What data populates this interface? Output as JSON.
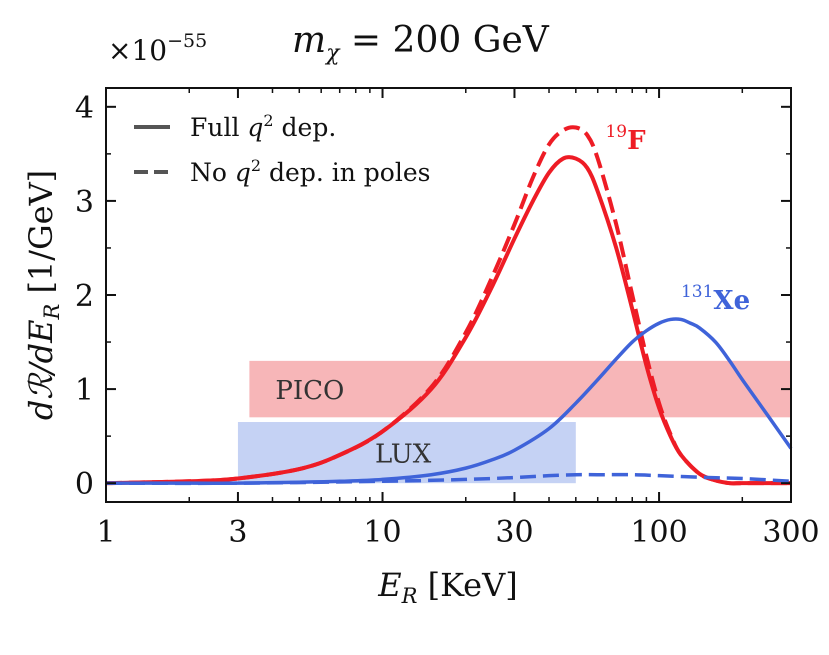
{
  "chart_data": {
    "type": "line",
    "title": "m_χ = 200 GeV",
    "xlabel": "E_R [KeV]",
    "ylabel": "dR/dE_R [1/GeV]",
    "y_scale_label": "×10^−55",
    "xscale": "log",
    "xlim": [
      1,
      300
    ],
    "ylim": [
      -0.2,
      4.2
    ],
    "x_ticks": [
      1,
      3,
      10,
      30,
      100,
      300
    ],
    "x_tick_labels": [
      "1",
      "3",
      "10",
      "30",
      "100",
      "300"
    ],
    "y_ticks": [
      0,
      1,
      2,
      3,
      4
    ],
    "y_tick_labels": [
      "0",
      "1",
      "2",
      "3",
      "4"
    ],
    "legend": [
      {
        "label": "Full q² dep.",
        "style": "solid"
      },
      {
        "label": "No q² dep. in poles",
        "style": "dashed"
      }
    ],
    "series": [
      {
        "name": "19F full q2",
        "color": "#ee1c25",
        "style": "solid",
        "x": [
          1,
          2,
          3,
          5,
          7,
          10,
          15,
          20,
          25,
          30,
          35,
          40,
          45,
          50,
          55,
          60,
          70,
          80,
          90,
          100,
          110,
          120,
          140,
          160,
          180,
          200,
          250,
          300
        ],
        "y": [
          0.0,
          0.02,
          0.05,
          0.15,
          0.3,
          0.55,
          1.0,
          1.55,
          2.1,
          2.6,
          3.0,
          3.3,
          3.45,
          3.45,
          3.35,
          3.1,
          2.5,
          1.85,
          1.25,
          0.8,
          0.5,
          0.3,
          0.1,
          0.03,
          0.0,
          0.0,
          0.0,
          0.0
        ]
      },
      {
        "name": "19F no q2 in poles",
        "color": "#ee1c25",
        "style": "dashed",
        "x": [
          1,
          2,
          3,
          5,
          7,
          10,
          15,
          20,
          25,
          30,
          35,
          40,
          45,
          50,
          55,
          60,
          70,
          80,
          90,
          100,
          110,
          120,
          140,
          160,
          180,
          200,
          250,
          300
        ],
        "y": [
          0.0,
          0.02,
          0.05,
          0.15,
          0.3,
          0.55,
          1.02,
          1.6,
          2.2,
          2.75,
          3.25,
          3.6,
          3.75,
          3.78,
          3.7,
          3.45,
          2.75,
          2.0,
          1.35,
          0.85,
          0.52,
          0.3,
          0.1,
          0.03,
          0.0,
          0.0,
          0.0,
          0.0
        ]
      },
      {
        "name": "131Xe full q2",
        "color": "#3f63d9",
        "style": "solid",
        "x": [
          1,
          2,
          3,
          5,
          7,
          10,
          15,
          20,
          25,
          30,
          40,
          50,
          60,
          70,
          80,
          90,
          100,
          110,
          120,
          130,
          140,
          160,
          180,
          200,
          250,
          300
        ],
        "y": [
          0.0,
          0.0,
          0.0,
          0.01,
          0.02,
          0.04,
          0.09,
          0.16,
          0.25,
          0.35,
          0.58,
          0.85,
          1.1,
          1.32,
          1.5,
          1.62,
          1.7,
          1.74,
          1.74,
          1.7,
          1.65,
          1.5,
          1.3,
          1.1,
          0.7,
          0.37
        ]
      },
      {
        "name": "131Xe no q2 in poles",
        "color": "#3f63d9",
        "style": "dashed",
        "x": [
          1,
          3,
          10,
          20,
          30,
          40,
          50,
          60,
          80,
          100,
          150,
          200,
          300
        ],
        "y": [
          0.0,
          0.0,
          0.02,
          0.04,
          0.06,
          0.08,
          0.09,
          0.09,
          0.09,
          0.08,
          0.06,
          0.05,
          0.02
        ]
      }
    ],
    "bands": [
      {
        "label": "PICO",
        "x": [
          3.3,
          300
        ],
        "y": [
          0.7,
          1.3
        ],
        "color": "#f7b6b8"
      },
      {
        "label": "LUX",
        "x": [
          3.0,
          50
        ],
        "y": [
          0.0,
          0.65
        ],
        "color": "#c5d2f4"
      }
    ],
    "annotations": [
      {
        "mass": "19",
        "symbol": "F",
        "color": "#ee1c25",
        "x": 64,
        "y": 3.55
      },
      {
        "mass": "131",
        "symbol": "Xe",
        "color": "#3f63d9",
        "x": 120,
        "y": 1.85
      }
    ]
  }
}
